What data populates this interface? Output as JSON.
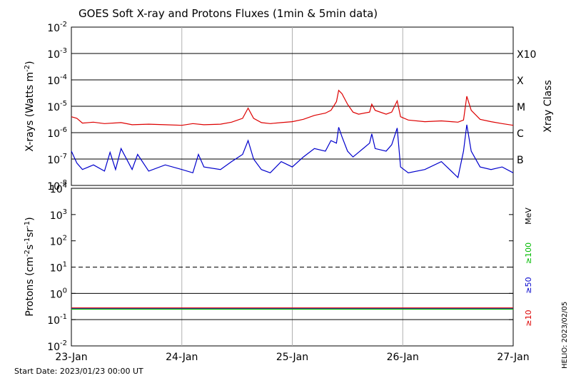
{
  "chart_data": {
    "title": "GOES Soft X-ray and Protons Fluxes   (1min & 5min data)",
    "footer_left": "Start Date: 2023/01/23 00:00 UT",
    "footer_right": "HELIO: 2023/02/05",
    "x_ticks": [
      "23-Jan",
      "24-Jan",
      "25-Jan",
      "26-Jan",
      "27-Jan"
    ],
    "x_range_days": [
      0,
      4
    ],
    "panels": [
      {
        "name": "xray",
        "type": "line",
        "ylabel": "X-rays (Watts m^-2)",
        "ylog": true,
        "ylim_exp": [
          -8,
          -2
        ],
        "y_tick_exps": [
          -8,
          -7,
          -6,
          -5,
          -4,
          -3,
          -2
        ],
        "right_axis_label": "Xray Class",
        "class_labels": [
          {
            "label": "B",
            "exp": -7
          },
          {
            "label": "C",
            "exp": -6
          },
          {
            "label": "M",
            "exp": -5
          },
          {
            "label": "X",
            "exp": -4
          },
          {
            "label": "X10",
            "exp": -3
          }
        ],
        "series": [
          {
            "color": "#dd0000",
            "x": [
              0,
              0.05,
              0.1,
              0.2,
              0.3,
              0.45,
              0.55,
              0.7,
              0.85,
              1.0,
              1.1,
              1.2,
              1.35,
              1.45,
              1.55,
              1.6,
              1.65,
              1.72,
              1.8,
              1.9,
              2.0,
              2.1,
              2.2,
              2.3,
              2.35,
              2.4,
              2.42,
              2.45,
              2.5,
              2.55,
              2.6,
              2.7,
              2.72,
              2.75,
              2.85,
              2.9,
              2.95,
              2.98,
              3.05,
              3.2,
              3.35,
              3.5,
              3.55,
              3.58,
              3.62,
              3.7,
              3.8,
              3.9,
              4.0
            ],
            "y": [
              4e-06,
              3.5e-06,
              2.3e-06,
              2.5e-06,
              2.2e-06,
              2.4e-06,
              2e-06,
              2.1e-06,
              2e-06,
              1.9e-06,
              2.2e-06,
              2e-06,
              2.1e-06,
              2.5e-06,
              3.5e-06,
              8.5e-06,
              3.5e-06,
              2.4e-06,
              2.2e-06,
              2.4e-06,
              2.6e-06,
              3.2e-06,
              4.5e-06,
              5.5e-06,
              7e-06,
              1.5e-05,
              4e-05,
              3e-05,
              1.2e-05,
              6e-06,
              5e-06,
              6e-06,
              1.2e-05,
              7e-06,
              5e-06,
              6e-06,
              1.6e-05,
              4e-06,
              3e-06,
              2.6e-06,
              2.8e-06,
              2.5e-06,
              3e-06,
              2.4e-05,
              7e-06,
              3.2e-06,
              2.6e-06,
              2.2e-06,
              1.9e-06
            ]
          },
          {
            "color": "#0000cc",
            "x": [
              0,
              0.05,
              0.1,
              0.2,
              0.3,
              0.35,
              0.4,
              0.45,
              0.55,
              0.6,
              0.7,
              0.85,
              1.0,
              1.1,
              1.15,
              1.2,
              1.35,
              1.45,
              1.55,
              1.6,
              1.65,
              1.72,
              1.8,
              1.9,
              2.0,
              2.1,
              2.2,
              2.3,
              2.35,
              2.4,
              2.42,
              2.45,
              2.5,
              2.55,
              2.6,
              2.7,
              2.72,
              2.75,
              2.85,
              2.9,
              2.95,
              2.98,
              3.05,
              3.2,
              3.35,
              3.5,
              3.55,
              3.58,
              3.62,
              3.7,
              3.8,
              3.9,
              4.0
            ],
            "y": [
              2e-07,
              7e-08,
              4e-08,
              6e-08,
              3.5e-08,
              1.8e-07,
              4e-08,
              2.5e-07,
              4e-08,
              1.5e-07,
              3.5e-08,
              6e-08,
              4e-08,
              3e-08,
              1.5e-07,
              5e-08,
              4e-08,
              8e-08,
              1.5e-07,
              5e-07,
              1e-07,
              4e-08,
              3e-08,
              8e-08,
              5e-08,
              1.2e-07,
              2.5e-07,
              2e-07,
              5e-07,
              4e-07,
              1.6e-06,
              7e-07,
              2e-07,
              1.2e-07,
              1.8e-07,
              4e-07,
              9e-07,
              2.5e-07,
              2e-07,
              3.5e-07,
              1.5e-06,
              5e-08,
              3e-08,
              4e-08,
              8e-08,
              2e-08,
              2e-07,
              2e-06,
              2e-07,
              5e-08,
              4e-08,
              5e-08,
              3e-08
            ]
          }
        ]
      },
      {
        "name": "protons",
        "type": "line",
        "ylabel": "Protons (cm^-2 s^-1 sr^-1)",
        "ylog": true,
        "ylim_exp": [
          -2,
          4
        ],
        "y_tick_exps": [
          -2,
          -1,
          0,
          1,
          2,
          3,
          4
        ],
        "dashed_level_exp": 1,
        "right_labels": [
          {
            "text": "MeV",
            "color": "#000000"
          },
          {
            "text": "≥100",
            "color": "#00bb00"
          },
          {
            "text": "≥50",
            "color": "#0000cc"
          },
          {
            "text": "≥10",
            "color": "#dd0000"
          }
        ],
        "series": [
          {
            "name": "≥10",
            "color": "#dd0000",
            "x": [
              0,
              4
            ],
            "y": [
              0.28,
              0.28
            ]
          },
          {
            "name": "≥50",
            "color": "#0000cc",
            "x": [
              0,
              4
            ],
            "y": [
              0.26,
              0.26
            ]
          },
          {
            "name": "≥100",
            "color": "#00bb00",
            "x": [
              0,
              4
            ],
            "y": [
              0.25,
              0.25
            ]
          }
        ]
      }
    ]
  }
}
